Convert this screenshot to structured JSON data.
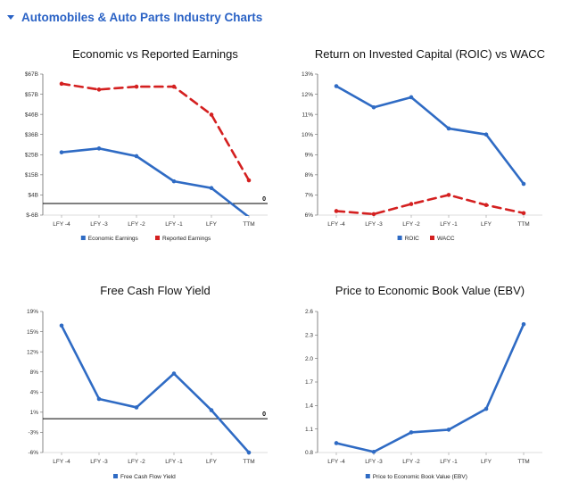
{
  "header": {
    "title": "Automobiles & Auto Parts Industry Charts"
  },
  "colors": {
    "blue": "#2f6bc4",
    "red": "#d42020",
    "accent": "#2a62c5"
  },
  "chart_data": [
    {
      "type": "line",
      "title": "Economic vs Reported Earnings",
      "categories": [
        "LFY -4",
        "LFY -3",
        "LFY -2",
        "LFY -1",
        "LFY",
        "TTM"
      ],
      "yticks": [
        "$-6B",
        "$4B",
        "$15B",
        "$25B",
        "$36B",
        "$46B",
        "$57B",
        "$67B"
      ],
      "ylim": [
        -6,
        67
      ],
      "reference_line": {
        "value": 0,
        "label": "0"
      },
      "series": [
        {
          "name": "Economic Earnings",
          "color": "#2f6bc4",
          "dashed": false,
          "values": [
            26.5,
            28.5,
            24.5,
            11.5,
            8,
            -7
          ]
        },
        {
          "name": "Reported Earnings",
          "color": "#d42020",
          "dashed": true,
          "values": [
            62,
            59,
            60.5,
            60.5,
            46,
            12
          ]
        }
      ],
      "legend": "bottom"
    },
    {
      "type": "line",
      "title": "Return on Invested Capital (ROIC) vs WACC",
      "categories": [
        "LFY -4",
        "LFY -3",
        "LFY -2",
        "LFY -1",
        "LFY",
        "TTM"
      ],
      "yticks": [
        "6%",
        "7%",
        "8%",
        "9%",
        "10%",
        "11%",
        "12%",
        "13%"
      ],
      "ylim": [
        6,
        13
      ],
      "series": [
        {
          "name": "ROIC",
          "color": "#2f6bc4",
          "dashed": false,
          "values": [
            12.4,
            11.35,
            11.85,
            10.3,
            10.0,
            7.55
          ]
        },
        {
          "name": "WACC",
          "color": "#d42020",
          "dashed": true,
          "values": [
            6.2,
            6.05,
            6.55,
            7.0,
            6.5,
            6.1
          ]
        }
      ],
      "legend": "bottom"
    },
    {
      "type": "line",
      "title": "Free Cash Flow Yield",
      "categories": [
        "LFY -4",
        "LFY -3",
        "LFY -2",
        "LFY -1",
        "LFY",
        "TTM"
      ],
      "yticks": [
        "-6%",
        "-3%",
        "1%",
        "4%",
        "8%",
        "12%",
        "15%",
        "19%"
      ],
      "ylim": [
        -6,
        19
      ],
      "reference_line": {
        "value": 0,
        "label": "0"
      },
      "series": [
        {
          "name": "Free Cash Flow Yield",
          "color": "#2f6bc4",
          "dashed": false,
          "values": [
            16.5,
            3.5,
            2,
            8,
            1.5,
            -6
          ]
        }
      ],
      "legend": "bottom"
    },
    {
      "type": "line",
      "title": "Price to Economic Book Value (EBV)",
      "categories": [
        "LFY -4",
        "LFY -3",
        "LFY -2",
        "LFY -1",
        "LFY",
        "TTM"
      ],
      "yticks": [
        "0.8",
        "1.1",
        "1.4",
        "1.7",
        "2.0",
        "2.3",
        "2.6"
      ],
      "ylim": [
        0.8,
        2.9
      ],
      "series": [
        {
          "name": "Price to Economic Book Value (EBV)",
          "color": "#2f6bc4",
          "dashed": false,
          "values": [
            0.94,
            0.81,
            1.1,
            1.14,
            1.45,
            2.71
          ]
        }
      ],
      "legend": "bottom"
    }
  ]
}
